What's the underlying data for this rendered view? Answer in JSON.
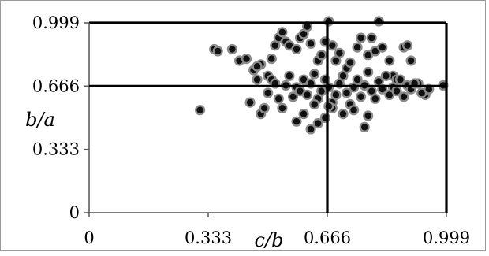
{
  "chart_data": {
    "type": "scatter",
    "title": "",
    "xlabel": "c/b",
    "ylabel": "b/a",
    "xlim": [
      0,
      0.999
    ],
    "ylim": [
      0,
      0.999
    ],
    "x_ticks": [
      "0",
      "0.333",
      "0.666",
      "0.999"
    ],
    "y_ticks": [
      "0",
      "0.333",
      "0.666",
      "0.999"
    ],
    "reference_lines": {
      "x": 0.666,
      "y": 0.666
    },
    "grid": false,
    "legend": "none",
    "colors": {
      "marker_fill": "#111111",
      "marker_edge": "#8a8a8a",
      "lines": "#000000",
      "frame": "#9a9a9a"
    },
    "points": [
      [
        0.31,
        0.54
      ],
      [
        0.35,
        0.86
      ],
      [
        0.36,
        0.85
      ],
      [
        0.4,
        0.86
      ],
      [
        0.42,
        0.8
      ],
      [
        0.44,
        0.81
      ],
      [
        0.47,
        0.7
      ],
      [
        0.48,
        0.78
      ],
      [
        0.5,
        0.72
      ],
      [
        0.51,
        0.81
      ],
      [
        0.52,
        0.88
      ],
      [
        0.53,
        0.92
      ],
      [
        0.54,
        0.95
      ],
      [
        0.55,
        0.9
      ],
      [
        0.56,
        0.88
      ],
      [
        0.58,
        0.86
      ],
      [
        0.59,
        0.92
      ],
      [
        0.6,
        0.94
      ],
      [
        0.61,
        0.98
      ],
      [
        0.62,
        0.89
      ],
      [
        0.64,
        0.8
      ],
      [
        0.65,
        0.83
      ],
      [
        0.66,
        0.9
      ],
      [
        0.67,
        1.04
      ],
      [
        0.68,
        0.88
      ],
      [
        0.69,
        0.8
      ],
      [
        0.7,
        0.84
      ],
      [
        0.72,
        0.76
      ],
      [
        0.73,
        0.79
      ],
      [
        0.75,
        0.87
      ],
      [
        0.76,
        0.92
      ],
      [
        0.78,
        0.83
      ],
      [
        0.79,
        0.92
      ],
      [
        0.8,
        0.85
      ],
      [
        0.81,
        1.04
      ],
      [
        0.82,
        0.87
      ],
      [
        0.84,
        0.8
      ],
      [
        0.85,
        0.72
      ],
      [
        0.86,
        0.7
      ],
      [
        0.88,
        0.87
      ],
      [
        0.89,
        0.88
      ],
      [
        0.9,
        0.8
      ],
      [
        0.92,
        0.68
      ],
      [
        0.94,
        0.62
      ],
      [
        0.99,
        0.67
      ],
      [
        0.45,
        0.58
      ],
      [
        0.46,
        0.75
      ],
      [
        0.47,
        0.77
      ],
      [
        0.48,
        0.52
      ],
      [
        0.49,
        0.55
      ],
      [
        0.5,
        0.63
      ],
      [
        0.51,
        0.7
      ],
      [
        0.52,
        0.68
      ],
      [
        0.53,
        0.6
      ],
      [
        0.54,
        0.55
      ],
      [
        0.55,
        0.67
      ],
      [
        0.56,
        0.72
      ],
      [
        0.57,
        0.61
      ],
      [
        0.58,
        0.66
      ],
      [
        0.59,
        0.64
      ],
      [
        0.6,
        0.7
      ],
      [
        0.61,
        0.62
      ],
      [
        0.62,
        0.68
      ],
      [
        0.63,
        0.73
      ],
      [
        0.64,
        0.6
      ],
      [
        0.65,
        0.64
      ],
      [
        0.66,
        0.7
      ],
      [
        0.67,
        0.66
      ],
      [
        0.68,
        0.58
      ],
      [
        0.69,
        0.62
      ],
      [
        0.7,
        0.68
      ],
      [
        0.71,
        0.72
      ],
      [
        0.72,
        0.63
      ],
      [
        0.73,
        0.57
      ],
      [
        0.74,
        0.66
      ],
      [
        0.75,
        0.7
      ],
      [
        0.76,
        0.61
      ],
      [
        0.77,
        0.67
      ],
      [
        0.78,
        0.74
      ],
      [
        0.79,
        0.64
      ],
      [
        0.8,
        0.6
      ],
      [
        0.81,
        0.69
      ],
      [
        0.82,
        0.65
      ],
      [
        0.83,
        0.72
      ],
      [
        0.84,
        0.62
      ],
      [
        0.85,
        0.66
      ],
      [
        0.86,
        0.64
      ],
      [
        0.87,
        0.7
      ],
      [
        0.88,
        0.61
      ],
      [
        0.89,
        0.67
      ],
      [
        0.9,
        0.65
      ],
      [
        0.91,
        0.68
      ],
      [
        0.93,
        0.63
      ],
      [
        0.95,
        0.65
      ],
      [
        0.6,
        0.52
      ],
      [
        0.62,
        0.44
      ],
      [
        0.64,
        0.47
      ],
      [
        0.66,
        0.5
      ],
      [
        0.68,
        0.55
      ],
      [
        0.71,
        0.52
      ],
      [
        0.74,
        0.54
      ],
      [
        0.77,
        0.45
      ],
      [
        0.78,
        0.51
      ],
      [
        0.58,
        0.48
      ],
      [
        0.63,
        0.57
      ],
      [
        0.67,
        0.56
      ]
    ]
  }
}
